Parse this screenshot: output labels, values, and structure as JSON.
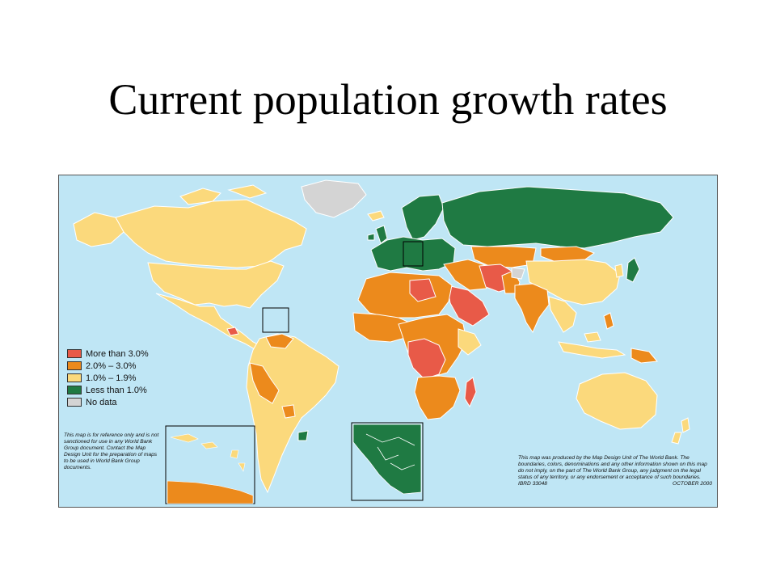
{
  "title": "Current population growth rates",
  "map": {
    "colors": {
      "ocean": "#bfe6f5",
      "more_than_3": "#e85a48",
      "two_to_three": "#ec8a1c",
      "one_to_two": "#fbd97c",
      "less_than_1": "#1f7a43",
      "no_data": "#d4d4d4",
      "border": "#ffffff"
    },
    "legend": [
      {
        "label": "More than 3.0%",
        "color": "#e85a48"
      },
      {
        "label": "2.0% – 3.0%",
        "color": "#ec8a1c"
      },
      {
        "label": "1.0% – 1.9%",
        "color": "#fbd97c"
      },
      {
        "label": "Less than 1.0%",
        "color": "#1f7a43"
      },
      {
        "label": "No data",
        "color": "#d4d4d4"
      }
    ],
    "note_left": "This map is for reference only and is not sanctioned for use in any World Bank Group document. Contact the Map Design Unit for the preparation of maps to be used in World Bank Group documents.",
    "note_right": "This map was produced by the Map Design Unit of The World Bank. The boundaries, colors, denominations and any other information shown on this map do not imply, on the part of The World Bank Group, any judgment on the legal status of any territory, or any endorsement or acceptance of such boundaries.",
    "code_left": "IBRD 33048",
    "code_right": "OCTOBER 2000"
  }
}
